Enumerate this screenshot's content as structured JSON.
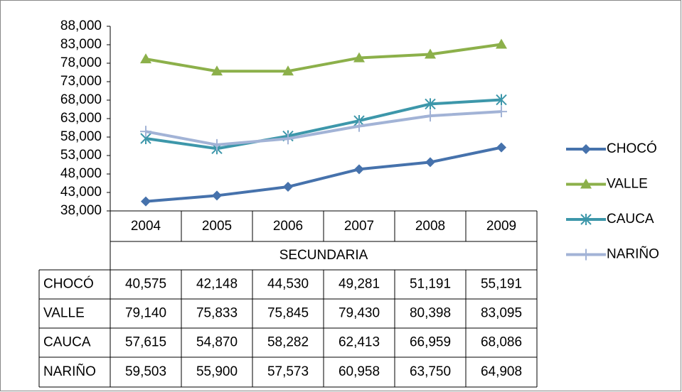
{
  "chart_data": {
    "type": "line",
    "category_group": "SECUNDARIA",
    "categories": [
      "2004",
      "2005",
      "2006",
      "2007",
      "2008",
      "2009"
    ],
    "series": [
      {
        "name": "CHOCÓ",
        "color": "#4672ac",
        "marker": "diamond",
        "values": [
          40575,
          42148,
          44530,
          49281,
          51191,
          55191
        ],
        "value_labels": [
          "40,575",
          "42,148",
          "44,530",
          "49,281",
          "51,191",
          "55,191"
        ]
      },
      {
        "name": "VALLE",
        "color": "#8cb04a",
        "marker": "triangle",
        "values": [
          79140,
          75833,
          75845,
          79430,
          80398,
          83095
        ],
        "value_labels": [
          "79,140",
          "75,833",
          "75,845",
          "79,430",
          "80,398",
          "83,095"
        ]
      },
      {
        "name": "CAUCA",
        "color": "#3d97aa",
        "marker": "asterisk",
        "values": [
          57615,
          54870,
          58282,
          62413,
          66959,
          68086
        ],
        "value_labels": [
          "57,615",
          "54,870",
          "58,282",
          "62,413",
          "66,959",
          "68,086"
        ]
      },
      {
        "name": "NARIÑO",
        "color": "#a2b3d6",
        "marker": "plus",
        "values": [
          59503,
          55900,
          57573,
          60958,
          63750,
          64908
        ],
        "value_labels": [
          "59,503",
          "55,900",
          "57,573",
          "60,958",
          "63,750",
          "64,908"
        ]
      }
    ],
    "ylim": [
      38000,
      88000
    ],
    "yticks": [
      {
        "value": 38000,
        "label": "38,000"
      },
      {
        "value": 43000,
        "label": "43,000"
      },
      {
        "value": 48000,
        "label": "48,000"
      },
      {
        "value": 53000,
        "label": "53,000"
      },
      {
        "value": 58000,
        "label": "58,000"
      },
      {
        "value": 63000,
        "label": "63,000"
      },
      {
        "value": 68000,
        "label": "68,000"
      },
      {
        "value": 73000,
        "label": "73,000"
      },
      {
        "value": 78000,
        "label": "78,000"
      },
      {
        "value": 83000,
        "label": "83,000"
      },
      {
        "value": 88000,
        "label": "88,000"
      }
    ],
    "grid": false,
    "legend": "right"
  }
}
